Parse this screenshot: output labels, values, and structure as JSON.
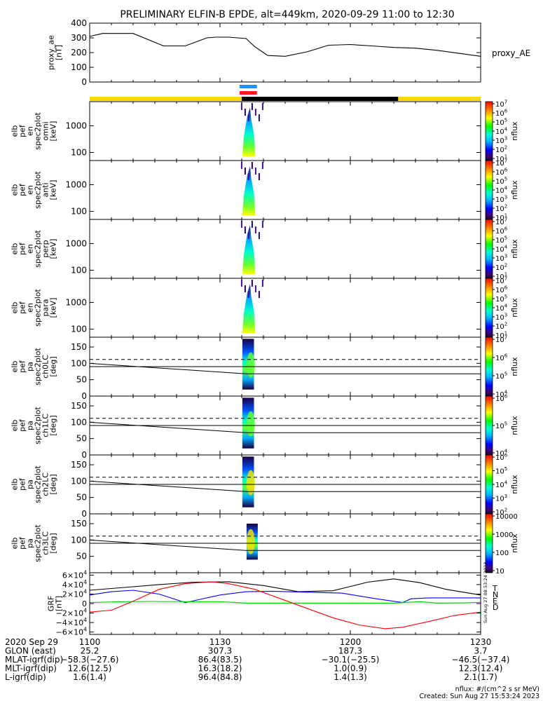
{
  "title": "PRELIMINARY ELFIN-B EPDE, alt=449km, 2020-09-29 11:00 to 12:30",
  "chart_data": {
    "type": "line",
    "time_range": [
      "11:00",
      "12:30"
    ],
    "panels": [
      {
        "id": "proxy_ae",
        "type": "line",
        "ylabel_lines": [
          "proxy_ae",
          "[nT]"
        ],
        "right_label": "proxy_AE",
        "ylim": [
          0,
          400
        ],
        "yticks": [
          "0",
          "100",
          "200",
          "300",
          "400"
        ],
        "series": [
          {
            "name": "proxy_AE",
            "x": [
              0,
              3,
              10,
              17,
              22,
              27,
              29,
              32,
              36,
              38,
              41,
              45,
              50,
              55,
              60,
              65,
              70,
              75,
              80,
              85,
              90
            ],
            "y": [
              310,
              330,
              330,
              245,
              245,
              300,
              305,
              305,
              295,
              240,
              180,
              175,
              205,
              250,
              255,
              245,
              235,
              230,
              215,
              195,
              175
            ]
          }
        ]
      },
      {
        "id": "omni",
        "type": "heatmap",
        "ylabel_lines": [
          "elb",
          "pef",
          "en",
          "spec2plot",
          "omni",
          "[keV]"
        ],
        "ylog": true,
        "ylim": [
          50,
          8000
        ],
        "yticks": [
          "100",
          "1000"
        ]
      },
      {
        "id": "anti",
        "type": "heatmap",
        "ylabel_lines": [
          "elb",
          "pef",
          "en",
          "spec2plot",
          "anti",
          "[keV]"
        ],
        "ylog": true,
        "ylim": [
          50,
          8000
        ],
        "yticks": [
          "100",
          "1000"
        ]
      },
      {
        "id": "perp",
        "type": "heatmap",
        "ylabel_lines": [
          "elb",
          "pef",
          "en",
          "spec2plot",
          "perp",
          "[keV]"
        ],
        "ylog": true,
        "ylim": [
          50,
          8000
        ],
        "yticks": [
          "100",
          "1000"
        ]
      },
      {
        "id": "para",
        "type": "heatmap",
        "ylabel_lines": [
          "elb",
          "pef",
          "en",
          "spec2plot",
          "para",
          "[keV]"
        ],
        "ylog": true,
        "ylim": [
          50,
          8000
        ],
        "yticks": [
          "100",
          "1000"
        ]
      },
      {
        "id": "ch0LC",
        "type": "heatmap",
        "ylabel_lines": [
          "elb",
          "pef",
          "pa",
          "spec2plot",
          "ch0LC",
          "[deg]"
        ],
        "ylim": [
          0,
          180
        ],
        "yticks": [
          "0",
          "50",
          "100",
          "150"
        ]
      },
      {
        "id": "ch1LC",
        "type": "heatmap",
        "ylabel_lines": [
          "elb",
          "pef",
          "pa",
          "spec2plot",
          "ch1LC",
          "[deg]"
        ],
        "ylim": [
          0,
          180
        ],
        "yticks": [
          "0",
          "50",
          "100",
          "150"
        ]
      },
      {
        "id": "ch2LC",
        "type": "heatmap",
        "ylabel_lines": [
          "elb",
          "pef",
          "pa",
          "spec2plot",
          "ch2LC",
          "[deg]"
        ],
        "ylim": [
          0,
          180
        ],
        "yticks": [
          "0",
          "50",
          "100",
          "150"
        ]
      },
      {
        "id": "ch3LC",
        "type": "heatmap",
        "ylabel_lines": [
          "elb",
          "pef",
          "pa",
          "spec2plot",
          "ch3LC",
          "[deg]"
        ],
        "ylim": [
          0,
          180
        ],
        "yticks": [
          "50",
          "100",
          "150"
        ]
      },
      {
        "id": "grf",
        "type": "line",
        "ylabel_lines": [
          "GRF",
          "[nT]"
        ],
        "ylim": [
          -65000,
          65000
        ],
        "yticks": [
          {
            "v": 60000,
            "m": "6",
            "e": "4"
          },
          {
            "v": 40000,
            "m": "4",
            "e": "4"
          },
          {
            "v": 20000,
            "m": "2",
            "e": "4"
          },
          {
            "v": 0,
            "m": "0",
            "e": ""
          },
          {
            "v": -20000,
            "m": "−2",
            "e": "4"
          },
          {
            "v": -40000,
            "m": "−4",
            "e": "4"
          },
          {
            "v": -60000,
            "m": "−6",
            "e": "4"
          }
        ],
        "legend": [
          {
            "label": "T",
            "color": "#000000"
          },
          {
            "label": "N",
            "color": "#0000ff"
          },
          {
            "label": "E",
            "color": "#00cc00"
          },
          {
            "label": "D",
            "color": "#ff0000"
          }
        ],
        "side_note": "Sun Aug 27 08:53:24 2023",
        "series": [
          {
            "name": "T",
            "color": "#000000",
            "x": [
              0,
              8,
              16,
              24,
              32,
              40,
              48,
              56,
              60,
              64,
              70,
              76,
              82,
              90
            ],
            "y": [
              28000,
              34000,
              40000,
              45000,
              46000,
              38000,
              25000,
              27000,
              36000,
              45000,
              52000,
              44000,
              30000,
              18000
            ]
          },
          {
            "name": "N",
            "color": "#0000ff",
            "x": [
              0,
              5,
              10,
              16,
              22,
              30,
              36,
              42,
              50,
              58,
              66,
              72,
              74,
              78,
              84,
              90
            ],
            "y": [
              18000,
              25000,
              28000,
              20000,
              2000,
              18000,
              25000,
              26000,
              24000,
              22000,
              10000,
              2000,
              10000,
              12000,
              12000,
              12000
            ]
          },
          {
            "name": "E",
            "color": "#00cc00",
            "x": [
              0,
              6,
              14,
              22,
              30,
              36,
              42,
              52,
              62,
              70,
              76,
              80,
              86,
              90
            ],
            "y": [
              2000,
              3500,
              4500,
              4000,
              4000,
              1000,
              1000,
              1000,
              1000,
              1000,
              4000,
              1000,
              1500,
              2500
            ]
          },
          {
            "name": "D",
            "color": "#ff0000",
            "x": [
              0,
              5,
              10,
              16,
              22,
              28,
              32,
              38,
              44,
              50,
              56,
              62,
              68,
              72,
              78,
              84,
              90
            ],
            "y": [
              -18000,
              -14000,
              5000,
              30000,
              42000,
              46000,
              42000,
              30000,
              10000,
              -10000,
              -30000,
              -45000,
              -53000,
              -50000,
              -38000,
              -25000,
              -18000
            ]
          }
        ]
      }
    ],
    "colorbars": [
      {
        "label": "nflux",
        "ticks": [
          {
            "m": "10",
            "e": "7"
          },
          {
            "m": "10",
            "e": "6"
          },
          {
            "m": "10",
            "e": "5"
          },
          {
            "m": "10",
            "e": "4"
          },
          {
            "m": "10",
            "e": "3"
          },
          {
            "m": "10",
            "e": "2"
          },
          {
            "m": "10",
            "e": "1"
          }
        ]
      },
      {
        "label": "nflux",
        "ticks": [
          {
            "m": "10",
            "e": "7"
          },
          {
            "m": "10",
            "e": "6"
          },
          {
            "m": "10",
            "e": "5"
          },
          {
            "m": "10",
            "e": "4"
          },
          {
            "m": "10",
            "e": "3"
          },
          {
            "m": "10",
            "e": "2"
          },
          {
            "m": "10",
            "e": "1"
          }
        ]
      },
      {
        "label": "nflux",
        "ticks": [
          {
            "m": "10",
            "e": "7"
          },
          {
            "m": "10",
            "e": "6"
          },
          {
            "m": "10",
            "e": "5"
          },
          {
            "m": "10",
            "e": "4"
          },
          {
            "m": "10",
            "e": "3"
          },
          {
            "m": "10",
            "e": "2"
          },
          {
            "m": "10",
            "e": "1"
          }
        ]
      },
      {
        "label": "nflux",
        "ticks": [
          {
            "m": "10",
            "e": "7"
          },
          {
            "m": "10",
            "e": "6"
          },
          {
            "m": "10",
            "e": "5"
          },
          {
            "m": "10",
            "e": "4"
          },
          {
            "m": "10",
            "e": "3"
          },
          {
            "m": "10",
            "e": "2"
          },
          {
            "m": "10",
            "e": "1"
          }
        ]
      },
      {
        "label": "nflux",
        "ticks": [
          {
            "m": "10",
            "e": "7"
          },
          {
            "m": "10",
            "e": "6"
          },
          {
            "m": "10",
            "e": "5"
          },
          {
            "m": "10",
            "e": "4"
          }
        ]
      },
      {
        "label": "nflux",
        "ticks": [
          {
            "m": "10",
            "e": "6"
          },
          {
            "m": "10",
            "e": "5"
          },
          {
            "m": "10",
            "e": "4"
          }
        ]
      },
      {
        "label": "nflux",
        "ticks": [
          {
            "m": "10",
            "e": "6"
          },
          {
            "m": "10",
            "e": "5"
          },
          {
            "m": "10",
            "e": "4"
          },
          {
            "m": "10",
            "e": "3"
          },
          {
            "m": "10",
            "e": "2"
          }
        ]
      },
      {
        "label": "nflux",
        "ticks": [
          {
            "m": "10000",
            "e": ""
          },
          {
            "m": "1000",
            "e": ""
          },
          {
            "m": "100",
            "e": ""
          },
          {
            "m": "10",
            "e": ""
          }
        ]
      }
    ],
    "footer_rows": [
      {
        "label": "2020 Sep 29",
        "values": [
          "1100",
          "1130",
          "1200",
          "1230"
        ]
      },
      {
        "label": "GLON (east)",
        "values": [
          "25.2",
          "307.3",
          "187.3",
          "3.7"
        ]
      },
      {
        "label": "MLAT-igrf(dip)",
        "values": [
          "−58.3(−27.6)",
          "86.4(83.5)",
          "−30.1(−25.5)",
          "−46.5(−37.4)"
        ]
      },
      {
        "label": "MLT-igrf(dip)",
        "values": [
          "12.6(12.5)",
          "16.3(18.2)",
          "1.0(0.9)",
          "12.3(12.4)"
        ]
      },
      {
        "label": "L-igrf(dip)",
        "values": [
          "1.6(1.4)",
          "96.4(84.8)",
          "1.4(1.3)",
          "2.1(1.7)"
        ]
      }
    ],
    "footnote_lines": [
      "nflux: #/(cm^2 s sr MeV)",
      "Created: Sun Aug 27 15:53:24 2023"
    ]
  }
}
